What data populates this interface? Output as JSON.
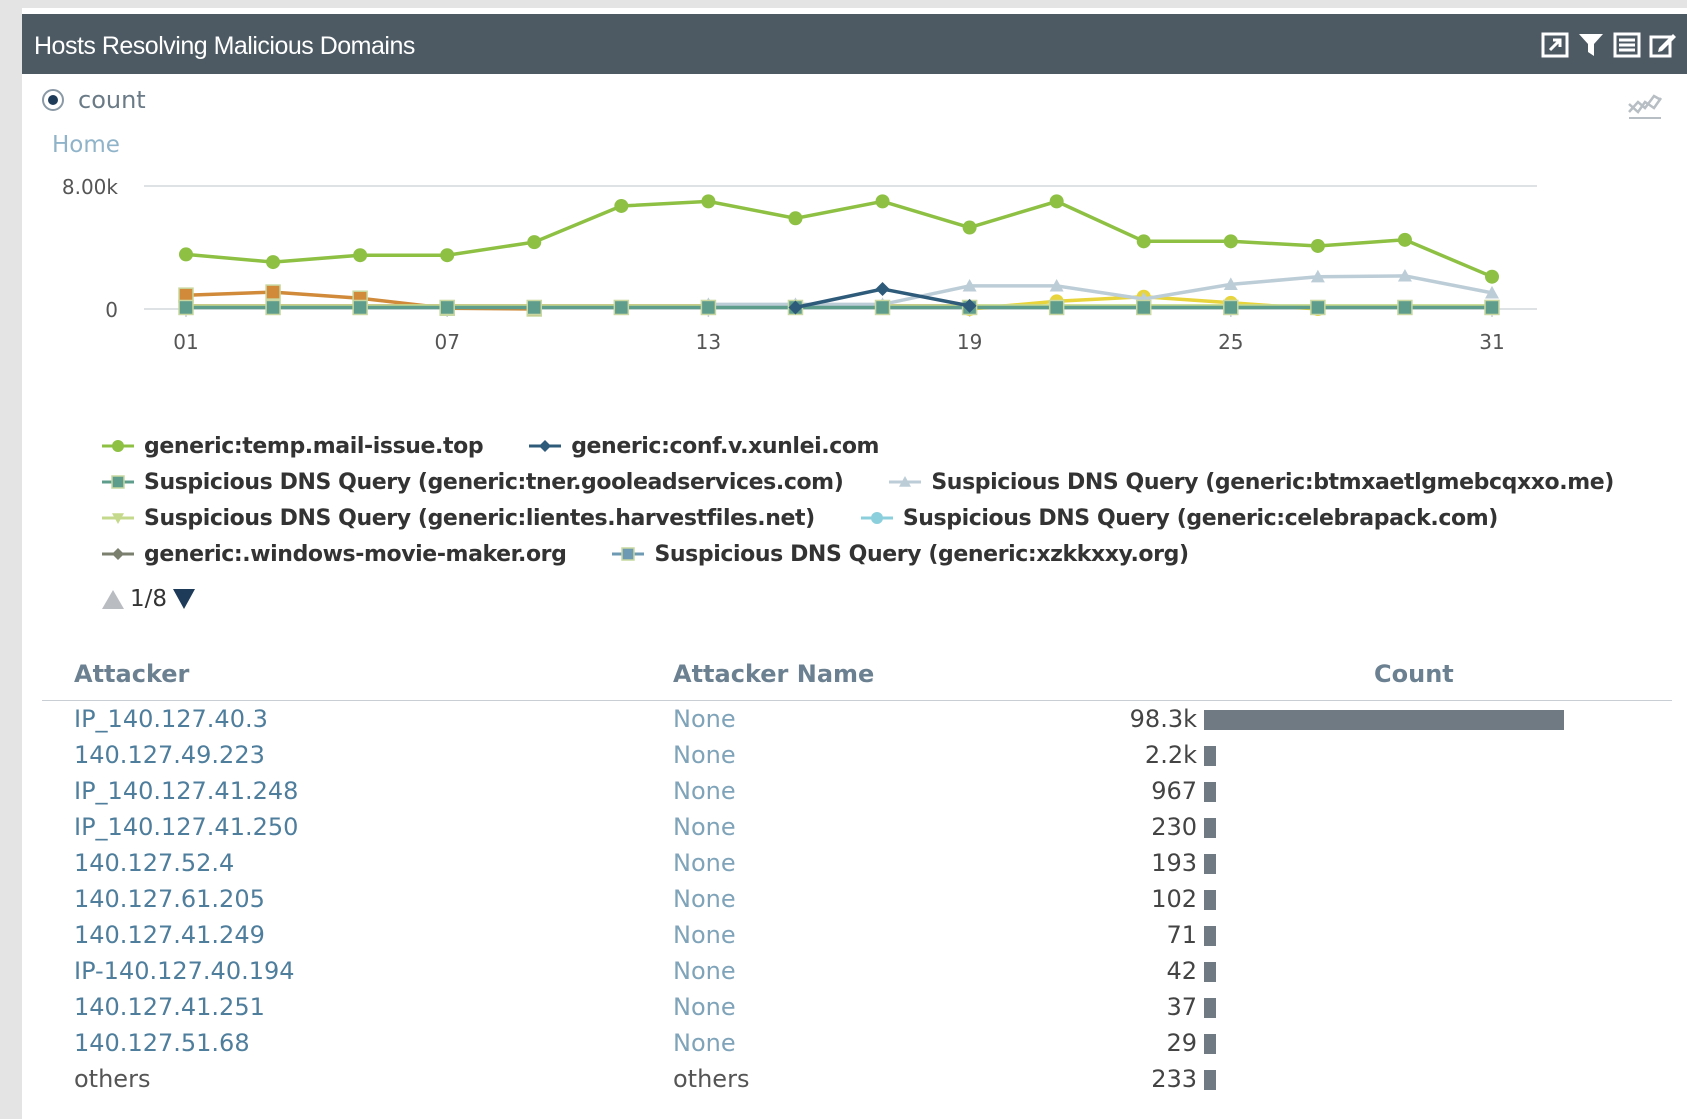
{
  "panel": {
    "title": "Hosts Resolving Malicious Domains",
    "header_icons": [
      "expand-icon",
      "filter-icon",
      "list-icon",
      "edit-icon"
    ]
  },
  "measure": {
    "selected": "count"
  },
  "breadcrumb": "Home",
  "chart_data": {
    "type": "line",
    "x": [
      1,
      3,
      5,
      7,
      9,
      11,
      13,
      15,
      17,
      19,
      21,
      23,
      25,
      27,
      29,
      31
    ],
    "xticks": [
      "01",
      "07",
      "13",
      "19",
      "25",
      "31"
    ],
    "xtick_values": [
      1,
      7,
      13,
      19,
      25,
      31
    ],
    "ylim": [
      0,
      8000
    ],
    "yticks": [
      "0",
      "8.00k"
    ],
    "ytick_values": [
      0,
      8000
    ],
    "series": [
      {
        "name": "generic:temp.mail-issue.top",
        "color": "#8dc043",
        "marker": "circle",
        "values": [
          3550,
          3050,
          3500,
          3500,
          4350,
          6700,
          7000,
          5900,
          7000,
          5300,
          7000,
          4400,
          4400,
          4100,
          4500,
          2100
        ]
      },
      {
        "name": "generic:conf.v.xunlei.com",
        "color": "#2f5b7a",
        "marker": "diamond",
        "values": [
          null,
          null,
          null,
          null,
          null,
          null,
          null,
          100,
          1300,
          200,
          null,
          null,
          null,
          null,
          null,
          null
        ]
      },
      {
        "name": "Suspicious DNS Query (generic:tner.gooleadservices.com)",
        "color": "#5e9c8c",
        "marker": "square",
        "values": [
          100,
          100,
          100,
          100,
          100,
          100,
          100,
          100,
          100,
          100,
          100,
          100,
          100,
          100,
          100,
          100
        ]
      },
      {
        "name": "Suspicious DNS Query (generic:btmxaetlgmebcqxxo.me)",
        "color": "#bdcdd7",
        "marker": "triangle",
        "values": [
          null,
          null,
          null,
          null,
          null,
          null,
          300,
          300,
          300,
          1500,
          1500,
          650,
          1600,
          2100,
          2150,
          1050
        ]
      },
      {
        "name": "Suspicious DNS Query (generic:lientes.harvestfiles.net)",
        "color": "#c5d98c",
        "marker": "triangle-down",
        "values": [
          200,
          200,
          200,
          200,
          200,
          200,
          200,
          200,
          200,
          200,
          200,
          200,
          200,
          200,
          200,
          200
        ]
      },
      {
        "name": "Suspicious DNS Query (generic:celebrapack.com)",
        "color": "#8ccfdc",
        "marker": "circle",
        "values": [
          null,
          null,
          null,
          null,
          null,
          null,
          null,
          null,
          null,
          null,
          null,
          null,
          null,
          null,
          null,
          null
        ]
      },
      {
        "name": "generic:.windows-movie-maker.org",
        "color": "#7a7f6e",
        "marker": "diamond",
        "values": [
          null,
          null,
          null,
          null,
          null,
          null,
          null,
          null,
          null,
          null,
          null,
          null,
          null,
          null,
          null,
          null
        ]
      },
      {
        "name": "Suspicious DNS Query (generic:xzkkxxy.org)",
        "color": "#6f9ab4",
        "marker": "square",
        "values": [
          null,
          null,
          null,
          null,
          null,
          null,
          null,
          null,
          null,
          null,
          null,
          null,
          null,
          null,
          null,
          null
        ]
      },
      {
        "color": "#d08a3a",
        "marker": "square",
        "values": [
          900,
          1100,
          700,
          50,
          0,
          null,
          null,
          null,
          null,
          null,
          null,
          null,
          null,
          null,
          null,
          null
        ]
      },
      {
        "color": "#e8d43c",
        "marker": "circle",
        "values": [
          null,
          null,
          null,
          null,
          null,
          null,
          null,
          null,
          null,
          0,
          500,
          800,
          400,
          0,
          null,
          null
        ]
      },
      {
        "color": "#d04040",
        "marker": "none",
        "values": [
          200,
          200,
          200,
          200,
          200,
          200,
          200,
          200,
          200,
          200,
          null,
          null,
          null,
          null,
          null,
          null
        ]
      }
    ]
  },
  "legend_rows": [
    [
      0,
      1
    ],
    [
      2,
      3
    ],
    [
      4,
      5
    ],
    [
      6,
      7
    ]
  ],
  "pager": {
    "text": "1/8"
  },
  "table": {
    "headers": {
      "attacker": "Attacker",
      "name": "Attacker Name",
      "count": "Count"
    },
    "max": 98300,
    "rows": [
      {
        "attacker": "IP_140.127.40.3",
        "name": "None",
        "count": "98.3k",
        "value": 98300
      },
      {
        "attacker": "140.127.49.223",
        "name": "None",
        "count": "2.2k",
        "value": 2200
      },
      {
        "attacker": "IP_140.127.41.248",
        "name": "None",
        "count": "967",
        "value": 967
      },
      {
        "attacker": "IP_140.127.41.250",
        "name": "None",
        "count": "230",
        "value": 230
      },
      {
        "attacker": "140.127.52.4",
        "name": "None",
        "count": "193",
        "value": 193
      },
      {
        "attacker": "140.127.61.205",
        "name": "None",
        "count": "102",
        "value": 102
      },
      {
        "attacker": "140.127.41.249",
        "name": "None",
        "count": "71",
        "value": 71
      },
      {
        "attacker": "IP-140.127.40.194",
        "name": "None",
        "count": "42",
        "value": 42
      },
      {
        "attacker": "140.127.41.251",
        "name": "None",
        "count": "37",
        "value": 37
      },
      {
        "attacker": "140.127.51.68",
        "name": "None",
        "count": "29",
        "value": 29
      },
      {
        "attacker": "others",
        "name": "others",
        "count": "233",
        "value": 233
      }
    ]
  }
}
